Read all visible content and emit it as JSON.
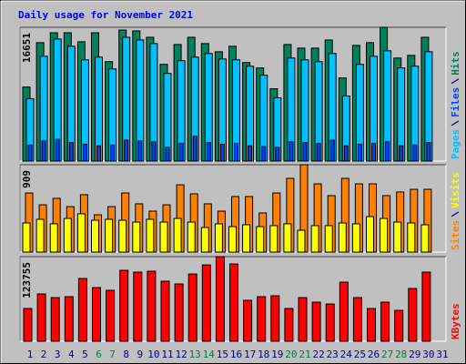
{
  "title": "Daily usage for November 2021",
  "chart_data": [
    {
      "type": "bar",
      "categories": [
        "1",
        "2",
        "3",
        "4",
        "5",
        "6",
        "7",
        "8",
        "9",
        "10",
        "11",
        "12",
        "13",
        "14",
        "15",
        "16",
        "17",
        "18",
        "19",
        "20",
        "21",
        "22",
        "23",
        "24",
        "25",
        "26",
        "27",
        "28",
        "29",
        "30",
        "31"
      ],
      "category_colors": [
        "#000080",
        "#000080",
        "#000080",
        "#000080",
        "#000080",
        "#008040",
        "#008040",
        "#000080",
        "#000080",
        "#000080",
        "#000080",
        "#000080",
        "#008040",
        "#008040",
        "#000080",
        "#000080",
        "#000080",
        "#000080",
        "#000080",
        "#008040",
        "#008040",
        "#000080",
        "#000080",
        "#000080",
        "#000080",
        "#000080",
        "#008040",
        "#008040",
        "#000080",
        "#000080",
        "#000080"
      ],
      "series": [
        {
          "name": "Pages",
          "color": "#00c0ff",
          "values": [
            7760,
            13050,
            15190,
            14290,
            12600,
            12940,
            11475,
            15410,
            15075,
            14625,
            10910,
            12490,
            12940,
            13390,
            12710,
            12600,
            11810,
            10690,
            7875,
            12825,
            12600,
            12375,
            13390,
            8100,
            12040,
            13050,
            13725,
            11590,
            11810,
            13610,
            null
          ]
        },
        {
          "name": "Files",
          "color": "#0040ff",
          "values": [
            2000,
            2500,
            2700,
            2300,
            2100,
            1900,
            2000,
            2600,
            2500,
            2400,
            1700,
            2200,
            3100,
            2300,
            2100,
            2200,
            1900,
            1800,
            1700,
            2400,
            2300,
            2200,
            2600,
            1900,
            2100,
            2200,
            2400,
            1900,
            2000,
            2300,
            null
          ]
        },
        {
          "name": "Hits",
          "color": "#00805c",
          "values": [
            9225,
            14740,
            15975,
            15975,
            14850,
            15975,
            12375,
            16310,
            16200,
            15410,
            12040,
            14510,
            15410,
            14625,
            13610,
            14290,
            12260,
            11590,
            9000,
            14510,
            14060,
            14060,
            15075,
            10350,
            14400,
            14740,
            16651,
            12825,
            13160,
            15410,
            null
          ]
        }
      ],
      "ylim": [
        0,
        16651
      ],
      "yticks": [
        16651
      ]
    },
    {
      "type": "bar",
      "series": [
        {
          "name": "Sites",
          "color": "#ff8000",
          "values": [
            615,
            492,
            559,
            473,
            597,
            388,
            473,
            615,
            502,
            426,
            492,
            700,
            606,
            502,
            426,
            578,
            578,
            407,
            615,
            767,
            909,
            710,
            587,
            767,
            710,
            710,
            587,
            625,
            653,
            653,
            null
          ]
        },
        {
          "name": "Visits",
          "color": "#ffff00",
          "values": [
            303,
            341,
            294,
            350,
            398,
            331,
            341,
            331,
            312,
            341,
            312,
            350,
            312,
            256,
            294,
            265,
            284,
            265,
            275,
            294,
            227,
            275,
            275,
            303,
            294,
            369,
            350,
            312,
            303,
            284,
            null
          ]
        }
      ],
      "ylim": [
        0,
        909
      ],
      "yticks": [
        909
      ]
    },
    {
      "type": "bar",
      "series": [
        {
          "name": "KBytes",
          "color": "#ff0000",
          "values": [
            47900,
            69200,
            63850,
            65200,
            91800,
            78500,
            74500,
            103750,
            101100,
            102400,
            87800,
            83800,
            98400,
            111700,
            123755,
            113050,
            59850,
            65200,
            66500,
            47900,
            63850,
            57200,
            54500,
            86450,
            63850,
            47900,
            57200,
            45200,
            77150,
            101100,
            null
          ]
        }
      ],
      "ylim": [
        0,
        123755
      ],
      "yticks": [
        123755
      ]
    }
  ]
}
